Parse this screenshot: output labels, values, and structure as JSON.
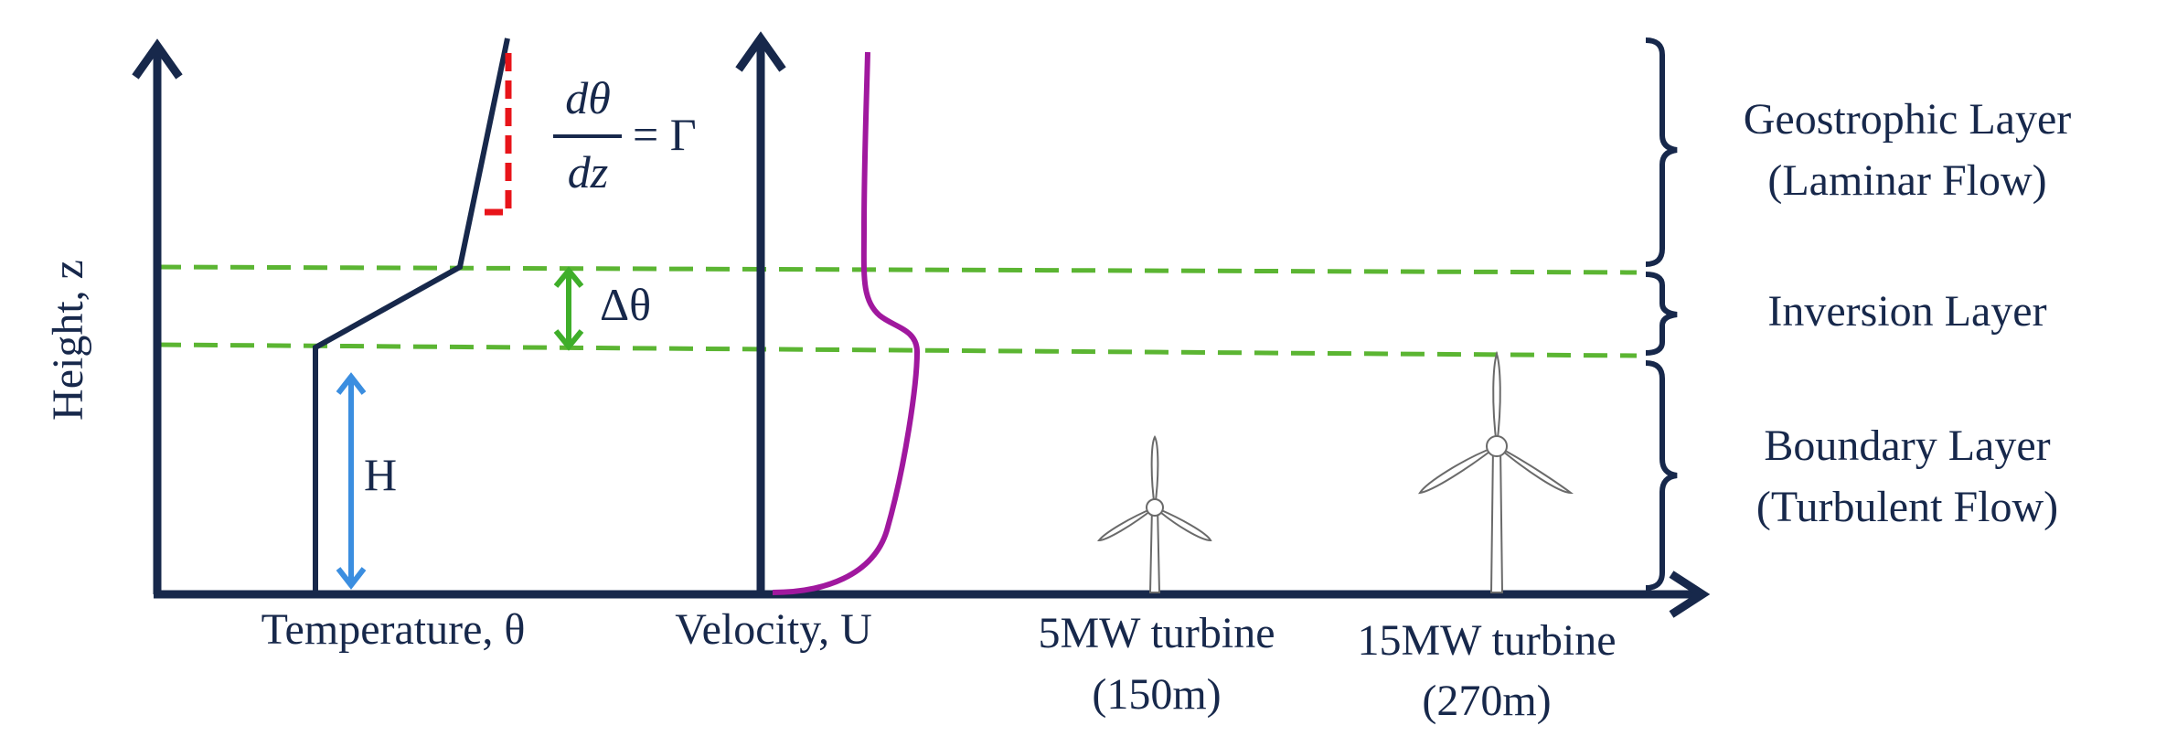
{
  "y_axis_label": "Height, z",
  "x_labels": {
    "temperature": "Temperature, θ",
    "velocity": "Velocity, U",
    "turbine_5mw": [
      "5MW turbine",
      "(150m)"
    ],
    "turbine_15mw": [
      "15MW turbine",
      "(270m)"
    ]
  },
  "equation": {
    "numerator": "dθ",
    "denominator": "dz",
    "rhs": "= Γ"
  },
  "delta_theta_label": "Δθ",
  "h_label": "H",
  "layers": {
    "geostrophic": [
      "Geostrophic Layer",
      "(Laminar Flow)"
    ],
    "inversion": "Inversion Layer",
    "boundary": [
      "Boundary Layer",
      "(Turbulent Flow)"
    ]
  },
  "colors": {
    "axis": "#17284b",
    "dashed_green": "#5bb532",
    "delta_arrow_green": "#3fae2a",
    "h_arrow_blue": "#3b8ee0",
    "velocity_profile": "#a0189e",
    "lapse_rate_red": "#e8141a",
    "turbine_outline": "#6a6a6a"
  }
}
